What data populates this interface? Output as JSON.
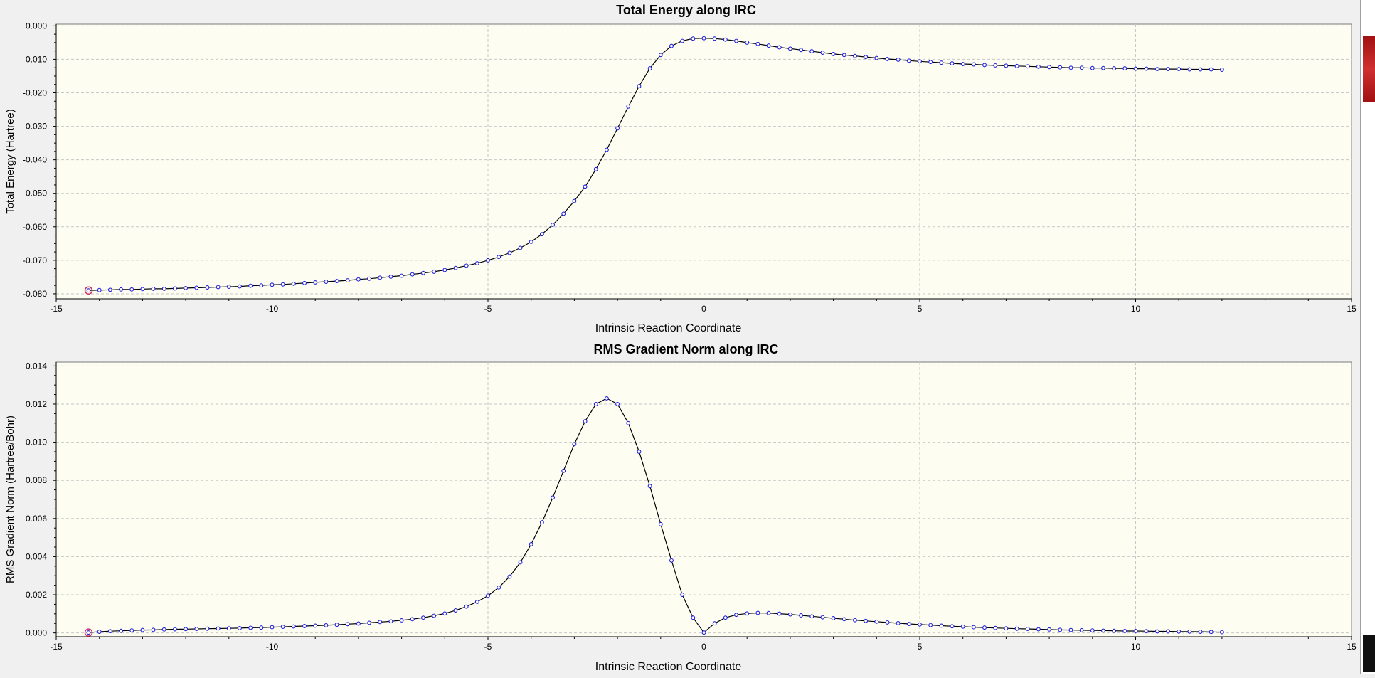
{
  "charts": [
    {
      "id": "energy",
      "title": "Total Energy along IRC",
      "xlabel": "Intrinsic Reaction Coordinate",
      "ylabel": "Total Energy (Hartree)",
      "x_ticks": [
        "-15",
        "-10",
        "-5",
        "0",
        "5",
        "10",
        "15"
      ],
      "y_ticks": [
        "0.000",
        "-0.010",
        "-0.020",
        "-0.030",
        "-0.040",
        "-0.050",
        "-0.060",
        "-0.070",
        "-0.080"
      ]
    },
    {
      "id": "gradient",
      "title": "RMS Gradient Norm along IRC",
      "xlabel": "Intrinsic Reaction Coordinate",
      "ylabel": "RMS Gradient Norm (Hartree/Bohr)",
      "x_ticks": [
        "-15",
        "-10",
        "-5",
        "0",
        "5",
        "10",
        "15"
      ],
      "y_ticks": [
        "0.014",
        "0.012",
        "0.010",
        "0.008",
        "0.006",
        "0.004",
        "0.002",
        "0.000"
      ]
    }
  ],
  "chart_data": [
    {
      "type": "line",
      "title": "Total Energy along IRC",
      "xlabel": "Intrinsic Reaction Coordinate",
      "ylabel": "Total Energy (Hartree)",
      "xlim": [
        -15,
        15
      ],
      "ylim": [
        -0.0815,
        0.0005
      ],
      "grid": true,
      "highlighted_point_index": 0,
      "series": [
        {
          "x": [
            -14.25,
            -14.0,
            -13.75,
            -13.5,
            -13.25,
            -13.0,
            -12.75,
            -12.5,
            -12.25,
            -12.0,
            -11.75,
            -11.5,
            -11.25,
            -11.0,
            -10.75,
            -10.5,
            -10.25,
            -10.0,
            -9.75,
            -9.5,
            -9.25,
            -9.0,
            -8.75,
            -8.5,
            -8.25,
            -8.0,
            -7.75,
            -7.5,
            -7.25,
            -7.0,
            -6.75,
            -6.5,
            -6.25,
            -6.0,
            -5.75,
            -5.5,
            -5.25,
            -5.0,
            -4.75,
            -4.5,
            -4.25,
            -4.0,
            -3.75,
            -3.5,
            -3.25,
            -3.0,
            -2.75,
            -2.5,
            -2.25,
            -2.0,
            -1.75,
            -1.5,
            -1.25,
            -1.0,
            -0.75,
            -0.5,
            -0.25,
            0.0,
            0.25,
            0.5,
            0.75,
            1.0,
            1.25,
            1.5,
            1.75,
            2.0,
            2.25,
            2.5,
            2.75,
            3.0,
            3.25,
            3.5,
            3.75,
            4.0,
            4.25,
            4.5,
            4.75,
            5.0,
            5.25,
            5.5,
            5.75,
            6.0,
            6.25,
            6.5,
            6.75,
            7.0,
            7.25,
            7.5,
            7.75,
            8.0,
            8.25,
            8.5,
            8.75,
            9.0,
            9.25,
            9.5,
            9.75,
            10.0,
            10.25,
            10.5,
            10.75,
            11.0,
            11.25,
            11.5,
            11.75,
            12.0
          ],
          "y": [
            -0.079,
            -0.0789,
            -0.0788,
            -0.0787,
            -0.0787,
            -0.0786,
            -0.0785,
            -0.0785,
            -0.0784,
            -0.0783,
            -0.0782,
            -0.0781,
            -0.078,
            -0.0779,
            -0.0778,
            -0.0776,
            -0.0775,
            -0.0773,
            -0.0772,
            -0.077,
            -0.0768,
            -0.0766,
            -0.0764,
            -0.0762,
            -0.076,
            -0.0757,
            -0.0755,
            -0.0752,
            -0.0749,
            -0.0746,
            -0.0742,
            -0.0738,
            -0.0734,
            -0.0729,
            -0.0723,
            -0.0716,
            -0.0709,
            -0.07,
            -0.069,
            -0.0678,
            -0.0663,
            -0.0645,
            -0.0622,
            -0.0594,
            -0.0561,
            -0.0523,
            -0.048,
            -0.0428,
            -0.037,
            -0.0306,
            -0.0241,
            -0.018,
            -0.0127,
            -0.0087,
            -0.006,
            -0.0045,
            -0.0038,
            -0.0037,
            -0.0038,
            -0.0041,
            -0.0045,
            -0.005,
            -0.0054,
            -0.0059,
            -0.0064,
            -0.0068,
            -0.0072,
            -0.0076,
            -0.008,
            -0.0084,
            -0.0087,
            -0.009,
            -0.0093,
            -0.0096,
            -0.0099,
            -0.0101,
            -0.0104,
            -0.0106,
            -0.0108,
            -0.011,
            -0.0112,
            -0.0114,
            -0.0115,
            -0.0117,
            -0.0118,
            -0.0119,
            -0.012,
            -0.0121,
            -0.0122,
            -0.0123,
            -0.0124,
            -0.0125,
            -0.0125,
            -0.0126,
            -0.0126,
            -0.0127,
            -0.0127,
            -0.0128,
            -0.0128,
            -0.0129,
            -0.0129,
            -0.0129,
            -0.013,
            -0.013,
            -0.013,
            -0.0131
          ]
        }
      ]
    },
    {
      "type": "line",
      "title": "RMS Gradient Norm along IRC",
      "xlabel": "Intrinsic Reaction Coordinate",
      "ylabel": "RMS Gradient Norm (Hartree/Bohr)",
      "xlim": [
        -15,
        15
      ],
      "ylim": [
        -0.0002,
        0.0142
      ],
      "grid": true,
      "highlighted_point_index": 0,
      "series": [
        {
          "x": [
            -14.25,
            -14.0,
            -13.75,
            -13.5,
            -13.25,
            -13.0,
            -12.75,
            -12.5,
            -12.25,
            -12.0,
            -11.75,
            -11.5,
            -11.25,
            -11.0,
            -10.75,
            -10.5,
            -10.25,
            -10.0,
            -9.75,
            -9.5,
            -9.25,
            -9.0,
            -8.75,
            -8.5,
            -8.25,
            -8.0,
            -7.75,
            -7.5,
            -7.25,
            -7.0,
            -6.75,
            -6.5,
            -6.25,
            -6.0,
            -5.75,
            -5.5,
            -5.25,
            -5.0,
            -4.75,
            -4.5,
            -4.25,
            -4.0,
            -3.75,
            -3.5,
            -3.25,
            -3.0,
            -2.75,
            -2.5,
            -2.25,
            -2.0,
            -1.75,
            -1.5,
            -1.25,
            -1.0,
            -0.75,
            -0.5,
            -0.25,
            0.0,
            0.25,
            0.5,
            0.75,
            1.0,
            1.25,
            1.5,
            1.75,
            2.0,
            2.25,
            2.5,
            2.75,
            3.0,
            3.25,
            3.5,
            3.75,
            4.0,
            4.25,
            4.5,
            4.75,
            5.0,
            5.25,
            5.5,
            5.75,
            6.0,
            6.25,
            6.5,
            6.75,
            7.0,
            7.25,
            7.5,
            7.75,
            8.0,
            8.25,
            8.5,
            8.75,
            9.0,
            9.25,
            9.5,
            9.75,
            10.0,
            10.25,
            10.5,
            10.75,
            11.0,
            11.25,
            11.5,
            11.75,
            12.0
          ],
          "y": [
            2e-05,
            6e-05,
            9e-05,
            0.00011,
            0.00013,
            0.00015,
            0.00016,
            0.00018,
            0.00019,
            0.0002,
            0.00021,
            0.00022,
            0.00023,
            0.00024,
            0.00025,
            0.00027,
            0.00028,
            0.0003,
            0.00032,
            0.00034,
            0.00036,
            0.00038,
            0.0004,
            0.00043,
            0.00046,
            0.00049,
            0.00053,
            0.00057,
            0.00061,
            0.00066,
            0.00072,
            0.0008,
            0.0009,
            0.00102,
            0.00118,
            0.00138,
            0.00163,
            0.00195,
            0.00238,
            0.00295,
            0.0037,
            0.00465,
            0.0058,
            0.0071,
            0.0085,
            0.0099,
            0.0111,
            0.012,
            0.0123,
            0.012,
            0.011,
            0.0095,
            0.0077,
            0.0057,
            0.0038,
            0.002,
            0.0008,
            2e-05,
            0.0005,
            0.0008,
            0.00095,
            0.00102,
            0.00105,
            0.00104,
            0.00101,
            0.00097,
            0.00092,
            0.00087,
            0.00082,
            0.00077,
            0.00072,
            0.00067,
            0.00063,
            0.00059,
            0.00055,
            0.00051,
            0.00047,
            0.00044,
            0.00041,
            0.00038,
            0.00035,
            0.00033,
            0.0003,
            0.00028,
            0.00026,
            0.00024,
            0.00022,
            0.00021,
            0.00019,
            0.00018,
            0.00016,
            0.00015,
            0.00014,
            0.00013,
            0.00012,
            0.00011,
            0.0001,
            0.0001,
            9e-05,
            8e-05,
            8e-05,
            7e-05,
            7e-05,
            6e-05,
            5e-05,
            4e-05
          ]
        }
      ]
    }
  ]
}
